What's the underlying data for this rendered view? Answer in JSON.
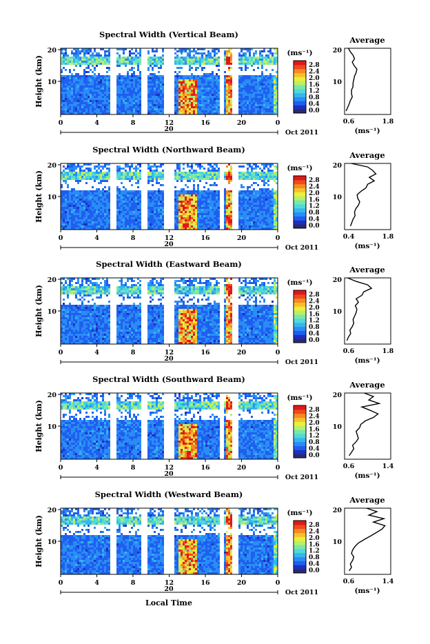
{
  "colors": {
    "colormap": [
      "#2a2a6e",
      "#1e2fbf",
      "#1f5ff0",
      "#2a8cf5",
      "#35b6f0",
      "#4fd9d9",
      "#7be7a8",
      "#b8ef6a",
      "#eaef3a",
      "#f7c02a",
      "#f58a22",
      "#ef4a1e",
      "#e0181a"
    ]
  },
  "common": {
    "x_ticks": [
      "0",
      "4",
      "8",
      "12",
      "16",
      "20",
      "0"
    ],
    "y_ticks": [
      "20",
      "10"
    ],
    "ylabel": "Height (km)",
    "date_marker": "20",
    "date_label": "Oct 2011",
    "xlabel": "Local Time",
    "colorbar_unit": "(ms⁻¹)",
    "colorbar_ticks": [
      "2.8",
      "2.4",
      "2.0",
      "1.6",
      "1.2",
      "0.8",
      "0.4",
      "0.0"
    ],
    "avg_title": "Average",
    "avg_xlabel": "(ms⁻¹)"
  },
  "chart_data": [
    {
      "type": "heatmap",
      "title": "Spectral Width (Vertical Beam)",
      "xlim": [
        0,
        24
      ],
      "ylim": [
        1,
        20
      ],
      "avg_xticks": [
        "0.6",
        "1.8"
      ],
      "avg_xlim": [
        0.6,
        1.8
      ],
      "avg_profile": {
        "height": [
          2,
          3,
          4,
          5,
          6,
          7,
          8,
          9,
          10,
          11,
          12,
          13,
          14,
          15,
          16,
          17,
          18,
          19,
          20
        ],
        "width": [
          0.64,
          0.68,
          0.72,
          0.75,
          0.8,
          0.78,
          0.78,
          0.82,
          0.82,
          0.84,
          0.86,
          0.9,
          0.92,
          0.85,
          0.8,
          0.86,
          0.82,
          0.75,
          0.7
        ]
      }
    },
    {
      "type": "heatmap",
      "title": "Spectral Width (Northward Beam)",
      "xlim": [
        0,
        24
      ],
      "ylim": [
        1,
        20
      ],
      "avg_xticks": [
        "0.4",
        "1.8"
      ],
      "avg_xlim": [
        0.4,
        1.8
      ],
      "avg_profile": {
        "height": [
          2,
          3,
          4,
          5,
          6,
          7,
          8,
          9,
          10,
          11,
          12,
          13,
          14,
          15,
          16,
          17,
          18,
          19,
          20
        ],
        "width": [
          0.58,
          0.62,
          0.66,
          0.72,
          0.7,
          0.74,
          0.82,
          0.86,
          0.8,
          0.78,
          0.9,
          1.05,
          1.1,
          1.3,
          1.15,
          1.35,
          1.25,
          1.1,
          0.6
        ]
      }
    },
    {
      "type": "heatmap",
      "title": "Spectral Width (Eastward Beam)",
      "xlim": [
        0,
        24
      ],
      "ylim": [
        1,
        20
      ],
      "avg_xticks": [
        "0.6",
        "1.8"
      ],
      "avg_xlim": [
        0.6,
        1.8
      ],
      "avg_profile": {
        "height": [
          2,
          3,
          4,
          5,
          6,
          7,
          8,
          9,
          10,
          11,
          12,
          13,
          14,
          15,
          16,
          17,
          18,
          19,
          20
        ],
        "width": [
          0.66,
          0.7,
          0.76,
          0.74,
          0.8,
          0.84,
          0.82,
          0.86,
          0.9,
          0.92,
          0.88,
          0.96,
          0.9,
          1.05,
          1.1,
          1.3,
          1.2,
          0.9,
          0.68
        ]
      }
    },
    {
      "type": "heatmap",
      "title": "Spectral Width (Southward Beam)",
      "xlim": [
        0,
        24
      ],
      "ylim": [
        1,
        20
      ],
      "avg_xticks": [
        "0.6",
        "1.4"
      ],
      "avg_xlim": [
        0.6,
        1.4
      ],
      "avg_profile": {
        "height": [
          2,
          3,
          4,
          5,
          6,
          7,
          8,
          9,
          10,
          11,
          12,
          13,
          14,
          15,
          16,
          17,
          18,
          19,
          20
        ],
        "width": [
          0.68,
          0.72,
          0.76,
          0.74,
          0.8,
          0.84,
          0.82,
          0.8,
          0.86,
          0.88,
          0.96,
          1.1,
          1.18,
          1.05,
          0.9,
          1.2,
          1.02,
          1.1,
          0.94
        ]
      }
    },
    {
      "type": "heatmap",
      "title": "Spectral Width (Westward Beam)",
      "xlim": [
        0,
        24
      ],
      "ylim": [
        1,
        20
      ],
      "avg_xticks": [
        "0.6",
        "1.4"
      ],
      "avg_xlim": [
        0.6,
        1.4
      ],
      "avg_profile": {
        "height": [
          2,
          3,
          4,
          5,
          6,
          7,
          8,
          9,
          10,
          11,
          12,
          13,
          14,
          15,
          16,
          17,
          18,
          19,
          20
        ],
        "width": [
          0.68,
          0.72,
          0.7,
          0.74,
          0.76,
          0.72,
          0.74,
          0.78,
          0.84,
          0.94,
          1.05,
          1.15,
          1.25,
          1.3,
          1.1,
          1.28,
          1.02,
          1.16,
          0.98
        ]
      }
    }
  ]
}
